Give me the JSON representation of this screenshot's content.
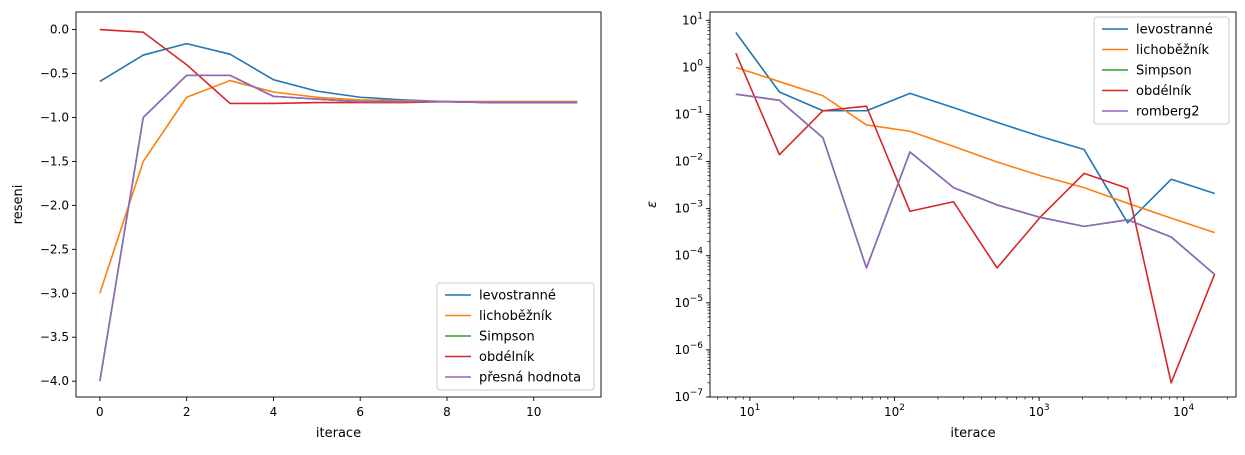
{
  "chart_data": [
    {
      "type": "line",
      "title": "",
      "xlabel": "iterace",
      "ylabel": "reseni",
      "xlim": [
        -0.55,
        11.55
      ],
      "ylim": [
        -4.18,
        0.2
      ],
      "xticks": [
        0,
        2,
        4,
        6,
        8,
        10
      ],
      "xtick_labels": [
        "0",
        "2",
        "4",
        "6",
        "8",
        "10"
      ],
      "yticks": [
        0.0,
        -0.5,
        -1.0,
        -1.5,
        -2.0,
        -2.5,
        -3.0,
        -3.5,
        -4.0
      ],
      "ytick_labels": [
        "0.0",
        "−0.5",
        "−1.0",
        "−1.5",
        "−2.0",
        "−2.5",
        "−3.0",
        "−3.5",
        "−4.0"
      ],
      "legend_position": "lower right",
      "x": [
        0,
        1,
        2,
        3,
        4,
        5,
        6,
        7,
        8,
        9,
        10,
        11
      ],
      "series": [
        {
          "name": "levostranné",
          "color": "#1f77b4",
          "values": [
            -0.59,
            -0.29,
            -0.16,
            -0.28,
            -0.57,
            -0.7,
            -0.77,
            -0.8,
            -0.82,
            -0.82,
            -0.82,
            -0.82
          ]
        },
        {
          "name": "lichoběžník",
          "color": "#ff7f0e",
          "values": [
            -3.0,
            -1.5,
            -0.77,
            -0.58,
            -0.71,
            -0.77,
            -0.8,
            -0.81,
            -0.82,
            -0.82,
            -0.82,
            -0.82
          ]
        },
        {
          "name": "Simpson",
          "color": "#2ca02c",
          "values": [
            -4.0,
            -1.0,
            -0.52,
            -0.52,
            -0.76,
            -0.79,
            -0.82,
            -0.82,
            -0.82,
            -0.83,
            -0.83,
            -0.83
          ]
        },
        {
          "name": "obdélník",
          "color": "#d62728",
          "values": [
            0.0,
            -0.03,
            -0.4,
            -0.84,
            -0.84,
            -0.83,
            -0.83,
            -0.83,
            -0.82,
            -0.83,
            -0.83,
            -0.83
          ]
        },
        {
          "name": "přesná hodnota",
          "color": "#9467bd",
          "values": [
            -4.0,
            -1.0,
            -0.52,
            -0.52,
            -0.76,
            -0.79,
            -0.82,
            -0.82,
            -0.82,
            -0.83,
            -0.83,
            -0.83
          ]
        }
      ]
    },
    {
      "type": "line",
      "title": "",
      "xlabel": "iterace",
      "ylabel": "ε",
      "xscale": "log",
      "yscale": "log",
      "xlim": [
        5.3,
        23000
      ],
      "ylim": [
        1e-07,
        15
      ],
      "xticks": [
        10,
        100,
        1000,
        10000
      ],
      "xtick_labels": [
        {
          "base": "10",
          "exp": "1"
        },
        {
          "base": "10",
          "exp": "2"
        },
        {
          "base": "10",
          "exp": "3"
        },
        {
          "base": "10",
          "exp": "4"
        }
      ],
      "yticks": [
        10,
        1,
        0.1,
        0.01,
        0.001,
        0.0001,
        1e-05,
        1e-06,
        1e-07
      ],
      "ytick_labels": [
        {
          "base": "10",
          "exp": "1"
        },
        {
          "base": "10",
          "exp": "0"
        },
        {
          "base": "10",
          "exp": "−1"
        },
        {
          "base": "10",
          "exp": "−2"
        },
        {
          "base": "10",
          "exp": "−3"
        },
        {
          "base": "10",
          "exp": "−4"
        },
        {
          "base": "10",
          "exp": "−5"
        },
        {
          "base": "10",
          "exp": "−6"
        },
        {
          "base": "10",
          "exp": "−7"
        }
      ],
      "legend_position": "upper right",
      "x": [
        8,
        16,
        32,
        64,
        128,
        256,
        512,
        1024,
        2048,
        4096,
        8192,
        16384
      ],
      "series": [
        {
          "name": "levostranné",
          "color": "#1f77b4",
          "values": [
            5.5,
            0.3,
            0.12,
            0.12,
            0.28,
            0.14,
            0.068,
            0.034,
            0.018,
            0.0005,
            0.0042,
            0.0021
          ]
        },
        {
          "name": "lichoběžník",
          "color": "#ff7f0e",
          "values": [
            1.0,
            0.5,
            0.25,
            0.06,
            0.044,
            0.021,
            0.0098,
            0.005,
            0.0028,
            0.0013,
            0.00063,
            0.00031
          ]
        },
        {
          "name": "Simpson",
          "color": "#2ca02c",
          "values": [
            0.27,
            0.2,
            0.032,
            5.5e-05,
            0.016,
            0.0028,
            0.0012,
            0.00065,
            0.00042,
            0.00058,
            0.00025,
            4e-05
          ]
        },
        {
          "name": "obdélník",
          "color": "#d62728",
          "values": [
            2.0,
            0.014,
            0.12,
            0.15,
            0.00088,
            0.0014,
            5.5e-05,
            0.00067,
            0.0056,
            0.0027,
            2e-07,
            4.1e-05
          ]
        },
        {
          "name": "romberg2",
          "color": "#9467bd",
          "values": [
            0.27,
            0.2,
            0.032,
            5.5e-05,
            0.016,
            0.0028,
            0.0012,
            0.00065,
            0.00042,
            0.00058,
            0.00025,
            4e-05
          ]
        }
      ]
    }
  ]
}
